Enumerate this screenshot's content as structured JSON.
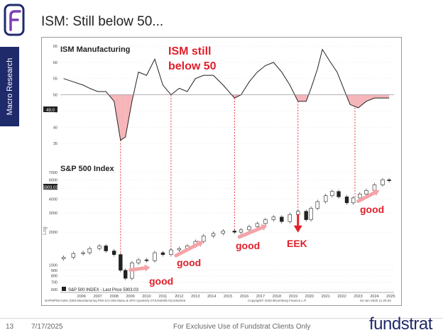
{
  "slide": {
    "title": "ISM: Still below 50...",
    "side_tab": "Macro Research",
    "page_number": "13",
    "date": "7/17/2025",
    "footer_text": "For Exclusive Use of Fundstrat Clients Only",
    "brand": "fundstrat",
    "colors": {
      "navy": "#1f2a6b",
      "red": "#e0202a",
      "pink": "#f4a3a8"
    }
  },
  "chart_data": [
    {
      "type": "line",
      "title": "ISM Manufacturing",
      "annotation": "ISM still below 50",
      "current_value_label": "49.0",
      "threshold": 50,
      "ylim": [
        30,
        65
      ],
      "yticks": [
        "65",
        "60",
        "55",
        "50",
        "45",
        "40",
        "35"
      ],
      "x": [
        2005.4,
        2006.0,
        2006.6,
        2007.0,
        2007.5,
        2008.0,
        2008.5,
        2008.9,
        2009.2,
        2009.6,
        2010.0,
        2010.5,
        2011.0,
        2011.5,
        2012.0,
        2012.5,
        2013.0,
        2013.5,
        2014.0,
        2014.6,
        2015.2,
        2015.9,
        2016.3,
        2016.8,
        2017.3,
        2017.8,
        2018.3,
        2018.8,
        2019.3,
        2019.8,
        2020.3,
        2020.6,
        2021.0,
        2021.3,
        2021.8,
        2022.2,
        2022.6,
        2023.0,
        2023.5,
        2024.0,
        2024.5,
        2025.0,
        2025.4
      ],
      "y": [
        55,
        54,
        53,
        52,
        51,
        51,
        48,
        36,
        37,
        48,
        57,
        56,
        61,
        53,
        50,
        52,
        51,
        55,
        56,
        56,
        53,
        49,
        50,
        54,
        57,
        59,
        60,
        57,
        53,
        48,
        48,
        52,
        58,
        64,
        60,
        57,
        52,
        47,
        46,
        48,
        49,
        49,
        49
      ]
    },
    {
      "type": "candlestick",
      "title": "S&P 500 Index",
      "legend": "S&P 500 INDEX - Last Price 5903.03",
      "current_value_label": "5903.03",
      "ylim": [
        600,
        7000
      ],
      "yticks": [
        "7000",
        "6000",
        "5000",
        "4000",
        "3000",
        "2000",
        "1000",
        "900",
        "800",
        "700",
        "600"
      ],
      "x": [
        2005.4,
        2006.0,
        2006.6,
        2007.0,
        2007.6,
        2008.0,
        2008.5,
        2008.9,
        2009.2,
        2009.6,
        2010.0,
        2010.5,
        2011.0,
        2011.5,
        2012.0,
        2012.5,
        2013.0,
        2013.5,
        2014.0,
        2014.6,
        2015.2,
        2015.9,
        2016.3,
        2016.8,
        2017.3,
        2017.8,
        2018.3,
        2018.8,
        2019.3,
        2019.8,
        2020.3,
        2020.6,
        2021.0,
        2021.5,
        2021.9,
        2022.3,
        2022.8,
        2023.2,
        2023.6,
        2024.0,
        2024.5,
        2025.0,
        2025.4
      ],
      "y": [
        1180,
        1280,
        1300,
        1420,
        1500,
        1350,
        1250,
        900,
        760,
        1050,
        1120,
        1100,
        1300,
        1250,
        1380,
        1420,
        1500,
        1650,
        1850,
        1950,
        2050,
        2000,
        2100,
        2250,
        2400,
        2600,
        2750,
        2500,
        2900,
        3100,
        2600,
        3300,
        3800,
        4300,
        4700,
        4200,
        3700,
        4100,
        4450,
        4800,
        5400,
        6000,
        5903
      ],
      "annotations": [
        "good",
        "good",
        "good",
        "EEK",
        "good"
      ]
    }
  ],
  "x_axis": {
    "years": [
      "2006",
      "2007",
      "2008",
      "2009",
      "2010",
      "2011",
      "2012",
      "2013",
      "2014",
      "2015",
      "2016",
      "2017",
      "2018",
      "2019",
      "2020",
      "2021",
      "2022",
      "2023",
      "2024",
      "2025"
    ],
    "source_left": "NAPMPMI Index (ISM Manufacturing PMI SA) ISM Manu & SPX Quarterly 07JUN2005-02JUN2025",
    "source_mid": "Copyright© 2025 Bloomberg Finance L.P.",
    "source_right": "02-Jun-2025 11:29:29"
  },
  "markers": {
    "ism_troughs": [
      2008.9,
      2012.0,
      2015.9,
      2019.8,
      2023.3
    ]
  }
}
